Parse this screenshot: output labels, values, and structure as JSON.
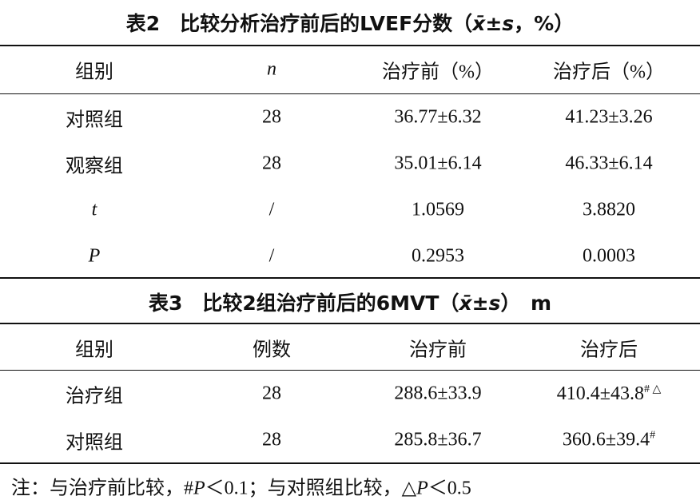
{
  "tables": [
    {
      "title": [
        {
          "text": "表2　比较分析治疗前后的LVEF分数（"
        },
        {
          "text": "x̄",
          "italic": true
        },
        {
          "text": "±"
        },
        {
          "text": "s",
          "italic": true
        },
        {
          "text": "，%）"
        }
      ],
      "header": [
        "组别",
        "n",
        "治疗前（%）",
        "治疗后（%）"
      ],
      "rows": [
        [
          "对照组",
          "28",
          "36.77±6.32",
          "41.23±3.26"
        ],
        [
          "观察组",
          "28",
          "35.01±6.14",
          "46.33±6.14"
        ],
        [
          "t",
          "/",
          "1.0569",
          "3.8820"
        ],
        [
          "P",
          "/",
          "0.2953",
          "0.0003"
        ]
      ]
    },
    {
      "title": [
        {
          "text": "表3　比较2组治疗前后的6MVT（"
        },
        {
          "text": "x̄",
          "italic": true
        },
        {
          "text": "±"
        },
        {
          "text": "s",
          "italic": true
        },
        {
          "text": "）　m"
        }
      ],
      "header": [
        "组别",
        "例数",
        "治疗前",
        "治疗后"
      ],
      "rows": [
        [
          "治疗组",
          "28",
          "288.6±33.9",
          {
            "text": "410.4±43.8",
            "sup": "# △"
          }
        ],
        [
          "对照组",
          "28",
          "285.8±36.7",
          {
            "text": "360.6±39.4",
            "sup": "#"
          }
        ]
      ]
    }
  ],
  "note": [
    {
      "text": "注：与治疗前比较，#"
    },
    {
      "text": "P",
      "italic": true
    },
    {
      "text": "＜0.1；与对照组比较，△"
    },
    {
      "text": "P",
      "italic": true
    },
    {
      "text": "＜0.5"
    }
  ]
}
